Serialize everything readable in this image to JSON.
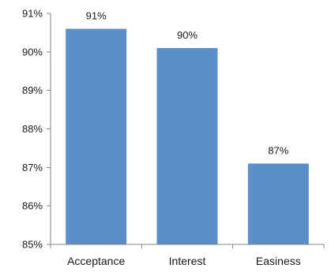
{
  "chart_data": {
    "type": "bar",
    "categories": [
      "Acceptance",
      "Interest",
      "Easiness"
    ],
    "values": [
      90.6,
      90.1,
      87.1
    ],
    "data_labels": [
      "91%",
      "90%",
      "87%"
    ],
    "ylim": [
      85,
      91
    ],
    "yticks": [
      85,
      86,
      87,
      88,
      89,
      90,
      91
    ],
    "ytick_labels": [
      "85%",
      "86%",
      "87%",
      "88%",
      "89%",
      "90%",
      "91%"
    ],
    "title": "",
    "xlabel": "",
    "ylabel": "",
    "grid": false,
    "legend": "none",
    "bar_color": "#5b8fc9"
  }
}
